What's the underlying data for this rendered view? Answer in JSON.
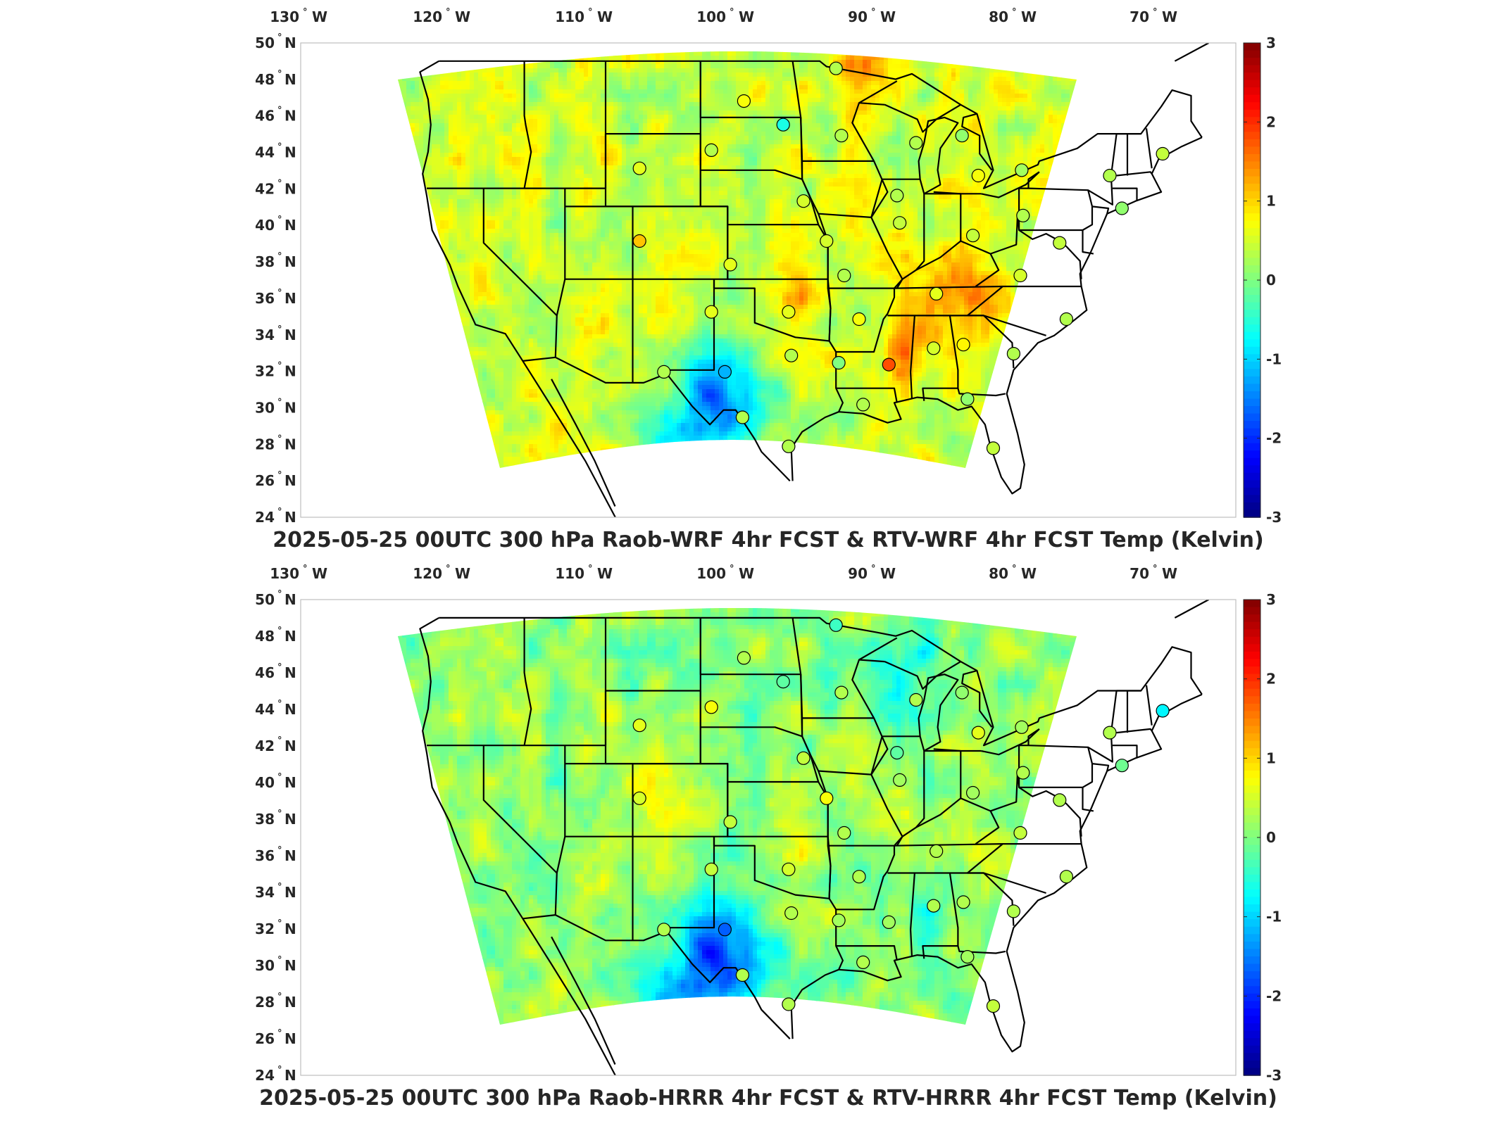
{
  "panels": [
    {
      "title": "2025-05-25 00UTC 300 hPa Raob-WRF 4hr FCST & RTV-WRF 4hr FCST Temp (Kelvin)",
      "stations": [
        {
          "lon": -94.0,
          "lat": 48.6,
          "value": 0.3
        },
        {
          "lon": -100.8,
          "lat": 46.8,
          "value": 0.7
        },
        {
          "lon": -97.9,
          "lat": 45.5,
          "value": -0.6
        },
        {
          "lon": -93.6,
          "lat": 44.9,
          "value": 0.3
        },
        {
          "lon": -88.1,
          "lat": 44.5,
          "value": 0.3
        },
        {
          "lon": -84.7,
          "lat": 44.9,
          "value": 0.1
        },
        {
          "lon": -103.2,
          "lat": 44.1,
          "value": 0.3
        },
        {
          "lon": -108.5,
          "lat": 43.1,
          "value": 0.6
        },
        {
          "lon": -83.5,
          "lat": 42.7,
          "value": 0.7
        },
        {
          "lon": -89.5,
          "lat": 41.6,
          "value": 0.3
        },
        {
          "lon": -80.3,
          "lat": 43.0,
          "value": 0.2
        },
        {
          "lon": -73.8,
          "lat": 42.7,
          "value": 0.3
        },
        {
          "lon": -69.9,
          "lat": 43.9,
          "value": 0.4
        },
        {
          "lon": -96.4,
          "lat": 41.3,
          "value": 0.5
        },
        {
          "lon": -89.3,
          "lat": 40.1,
          "value": 0.4
        },
        {
          "lon": -80.2,
          "lat": 40.5,
          "value": 0.3
        },
        {
          "lon": -72.9,
          "lat": 40.9,
          "value": 0.1
        },
        {
          "lon": -108.5,
          "lat": 39.1,
          "value": 1.1
        },
        {
          "lon": -94.7,
          "lat": 39.1,
          "value": 0.5
        },
        {
          "lon": -83.9,
          "lat": 39.4,
          "value": 0.4
        },
        {
          "lon": -77.5,
          "lat": 39.0,
          "value": 0.4
        },
        {
          "lon": -101.8,
          "lat": 37.8,
          "value": 0.6
        },
        {
          "lon": -93.4,
          "lat": 37.2,
          "value": 0.3
        },
        {
          "lon": -80.4,
          "lat": 37.2,
          "value": 0.5
        },
        {
          "lon": -86.6,
          "lat": 36.2,
          "value": 0.6
        },
        {
          "lon": -103.2,
          "lat": 35.2,
          "value": 0.6
        },
        {
          "lon": -97.5,
          "lat": 35.2,
          "value": 0.6
        },
        {
          "lon": -92.3,
          "lat": 34.8,
          "value": 0.7
        },
        {
          "lon": -77.0,
          "lat": 34.8,
          "value": 0.3
        },
        {
          "lon": -86.8,
          "lat": 33.2,
          "value": 0.5
        },
        {
          "lon": -84.6,
          "lat": 33.4,
          "value": 0.8
        },
        {
          "lon": -97.3,
          "lat": 32.8,
          "value": 0.3
        },
        {
          "lon": -93.8,
          "lat": 32.4,
          "value": 0.0
        },
        {
          "lon": -90.1,
          "lat": 32.3,
          "value": 1.8
        },
        {
          "lon": -80.9,
          "lat": 32.9,
          "value": 0.3
        },
        {
          "lon": -106.7,
          "lat": 31.9,
          "value": 0.3
        },
        {
          "lon": -102.2,
          "lat": 31.9,
          "value": -1.2
        },
        {
          "lon": -92.0,
          "lat": 30.1,
          "value": 0.3
        },
        {
          "lon": -84.3,
          "lat": 30.4,
          "value": 0.1
        },
        {
          "lon": -100.9,
          "lat": 29.4,
          "value": 0.3
        },
        {
          "lon": -97.5,
          "lat": 27.8,
          "value": 0.3
        },
        {
          "lon": -82.4,
          "lat": 27.7,
          "value": 0.4
        }
      ]
    },
    {
      "title": "2025-05-25 00UTC 300 hPa Raob-HRRR 4hr FCST & RTV-HRRR 4hr FCST Temp (Kelvin)",
      "stations": [
        {
          "lon": -94.0,
          "lat": 48.6,
          "value": -0.4
        },
        {
          "lon": -100.8,
          "lat": 46.8,
          "value": 0.3
        },
        {
          "lon": -97.9,
          "lat": 45.5,
          "value": -0.2
        },
        {
          "lon": -93.6,
          "lat": 44.9,
          "value": 0.3
        },
        {
          "lon": -88.1,
          "lat": 44.5,
          "value": 0.3
        },
        {
          "lon": -84.7,
          "lat": 44.9,
          "value": 0.1
        },
        {
          "lon": -103.2,
          "lat": 44.1,
          "value": 0.7
        },
        {
          "lon": -108.5,
          "lat": 43.1,
          "value": 0.6
        },
        {
          "lon": -83.5,
          "lat": 42.7,
          "value": 0.6
        },
        {
          "lon": -89.5,
          "lat": 41.6,
          "value": -0.2
        },
        {
          "lon": -80.3,
          "lat": 43.0,
          "value": 0.2
        },
        {
          "lon": -73.8,
          "lat": 42.7,
          "value": 0.3
        },
        {
          "lon": -69.9,
          "lat": 43.9,
          "value": -0.8
        },
        {
          "lon": -96.4,
          "lat": 41.3,
          "value": 0.4
        },
        {
          "lon": -89.3,
          "lat": 40.1,
          "value": 0.2
        },
        {
          "lon": -80.2,
          "lat": 40.5,
          "value": 0.3
        },
        {
          "lon": -72.9,
          "lat": 40.9,
          "value": -0.1
        },
        {
          "lon": -108.5,
          "lat": 39.1,
          "value": 0.5
        },
        {
          "lon": -94.7,
          "lat": 39.1,
          "value": 0.7
        },
        {
          "lon": -83.9,
          "lat": 39.4,
          "value": 0.2
        },
        {
          "lon": -77.5,
          "lat": 39.0,
          "value": 0.3
        },
        {
          "lon": -101.8,
          "lat": 37.8,
          "value": 0.4
        },
        {
          "lon": -93.4,
          "lat": 37.2,
          "value": 0.3
        },
        {
          "lon": -80.4,
          "lat": 37.2,
          "value": 0.4
        },
        {
          "lon": -86.6,
          "lat": 36.2,
          "value": 0.3
        },
        {
          "lon": -103.2,
          "lat": 35.2,
          "value": 0.4
        },
        {
          "lon": -97.5,
          "lat": 35.2,
          "value": 0.5
        },
        {
          "lon": -92.3,
          "lat": 34.8,
          "value": 0.3
        },
        {
          "lon": -77.0,
          "lat": 34.8,
          "value": 0.3
        },
        {
          "lon": -86.8,
          "lat": 33.2,
          "value": 0.3
        },
        {
          "lon": -84.6,
          "lat": 33.4,
          "value": 0.3
        },
        {
          "lon": -97.3,
          "lat": 32.8,
          "value": 0.3
        },
        {
          "lon": -93.8,
          "lat": 32.4,
          "value": 0.2
        },
        {
          "lon": -90.1,
          "lat": 32.3,
          "value": 0.2
        },
        {
          "lon": -80.9,
          "lat": 32.9,
          "value": 0.3
        },
        {
          "lon": -106.7,
          "lat": 31.9,
          "value": 0.3
        },
        {
          "lon": -102.2,
          "lat": 31.9,
          "value": -1.7
        },
        {
          "lon": -92.0,
          "lat": 30.1,
          "value": 0.3
        },
        {
          "lon": -84.3,
          "lat": 30.4,
          "value": 0.2
        },
        {
          "lon": -100.9,
          "lat": 29.4,
          "value": 0.3
        },
        {
          "lon": -97.5,
          "lat": 27.8,
          "value": 0.3
        },
        {
          "lon": -82.4,
          "lat": 27.7,
          "value": 0.4
        }
      ]
    }
  ],
  "axes": {
    "lon_ticks": [
      "130",
      "120",
      "110",
      "100",
      "90",
      "80",
      "70"
    ],
    "lon_hemisphere": "W",
    "lat_ticks": [
      "50",
      "48",
      "46",
      "44",
      "42",
      "40",
      "38",
      "36",
      "34",
      "32",
      "30",
      "28",
      "26",
      "24"
    ],
    "lat_hemisphere": "N",
    "degree_symbol": "°"
  },
  "colorbar": {
    "ticks": [
      "3",
      "2",
      "1",
      "0",
      "-1",
      "-2",
      "-3"
    ],
    "min": -3,
    "max": 3,
    "colormap": "jet"
  },
  "colors": {
    "map_lines": "#000000",
    "station_outline": "#000000",
    "frame": "#262626"
  }
}
